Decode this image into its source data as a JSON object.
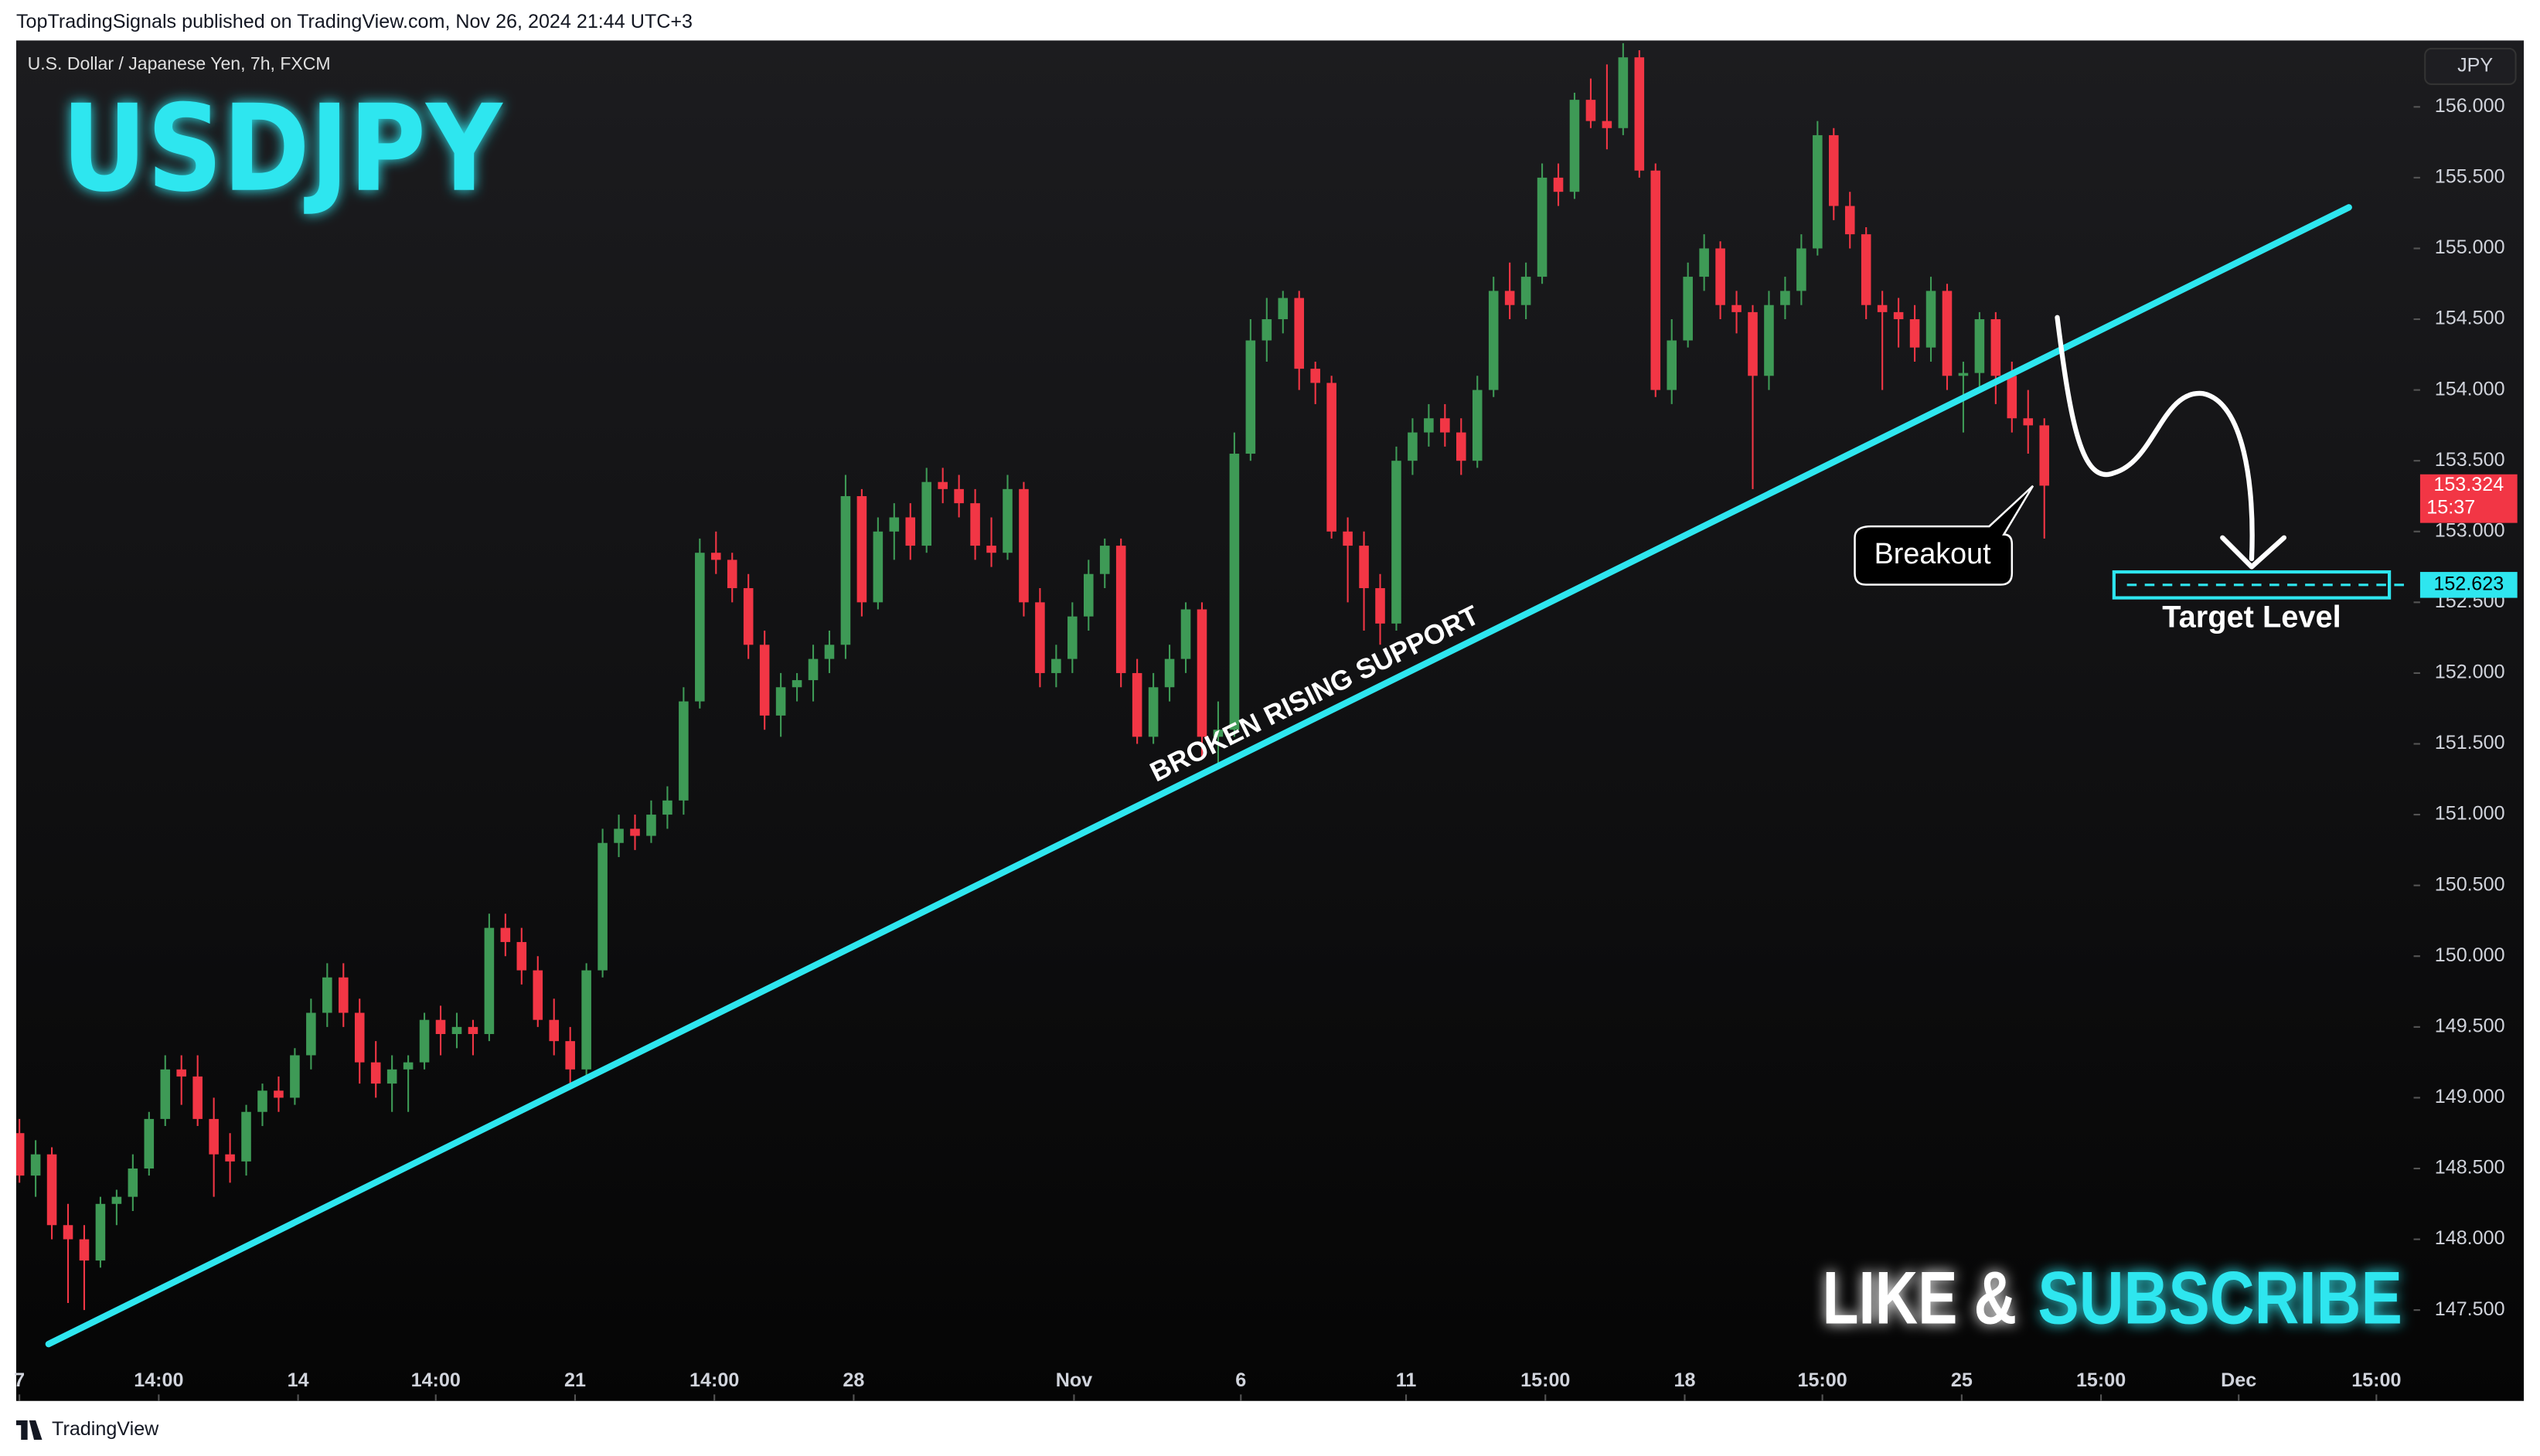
{
  "header": "TopTradingSignals published on TradingView.com, Nov 26, 2024 21:44 UTC+3",
  "footer": "TradingView",
  "chart_data": {
    "type": "candlestick",
    "subtitle": "U.S. Dollar / Japanese Yen, 7h, FXCM",
    "currency": "JPY",
    "title": "USDJPY",
    "up_color": "#3e9a56",
    "down_color": "#f23645",
    "line_color": "#2ee6ef",
    "grid": false,
    "open": [
      148.75,
      148.45,
      148.6,
      148.1,
      148.0,
      147.85,
      148.25,
      148.3,
      148.5,
      148.85,
      149.2,
      149.15,
      148.85,
      148.6,
      148.55,
      148.9,
      149.05,
      149.0,
      149.3,
      149.6,
      149.85,
      149.6,
      149.25,
      149.1,
      149.2,
      149.25,
      149.55,
      149.45,
      149.5,
      149.45,
      150.2,
      150.1,
      149.9,
      149.55,
      149.4,
      149.2,
      149.9,
      150.8,
      150.9,
      150.85,
      151.0,
      151.1,
      151.8,
      152.85,
      152.8,
      152.6,
      152.2,
      151.7,
      151.9,
      151.95,
      152.1,
      152.2,
      153.25,
      152.5,
      153.0,
      153.1,
      152.9,
      153.35,
      153.3,
      153.2,
      152.9,
      152.85,
      153.3,
      152.5,
      152.0,
      152.1,
      152.4,
      152.7,
      152.9,
      152.0,
      151.55,
      151.9,
      152.1,
      152.45,
      151.55,
      151.6,
      153.55,
      154.35,
      154.5,
      154.65,
      154.15,
      154.05,
      153.0,
      152.9,
      152.6,
      152.35,
      153.5,
      153.7,
      153.8,
      153.7,
      153.5,
      154.0,
      154.7,
      154.6,
      154.8,
      155.5,
      155.4,
      156.05,
      155.9,
      155.85,
      156.35,
      155.55,
      154.0,
      154.35,
      154.8,
      155.0,
      154.6,
      154.55,
      154.1,
      154.6,
      154.7,
      155.0,
      155.8,
      155.3,
      155.1,
      154.6,
      154.55,
      154.5,
      154.3,
      154.7,
      154.1,
      154.12,
      154.5,
      154.1,
      153.8,
      153.75
    ],
    "high": [
      148.85,
      148.7,
      148.65,
      148.25,
      148.1,
      148.3,
      148.35,
      148.6,
      148.9,
      149.3,
      149.3,
      149.3,
      149.0,
      148.75,
      148.95,
      149.1,
      149.15,
      149.35,
      149.7,
      149.95,
      149.95,
      149.7,
      149.4,
      149.3,
      149.3,
      149.6,
      149.65,
      149.6,
      149.55,
      150.3,
      150.3,
      150.2,
      150.0,
      149.7,
      149.5,
      149.95,
      150.9,
      151.0,
      151.0,
      151.1,
      151.2,
      151.9,
      152.95,
      153.0,
      152.85,
      152.7,
      152.3,
      152.0,
      152.0,
      152.2,
      152.3,
      153.4,
      153.3,
      153.1,
      153.2,
      153.2,
      153.45,
      153.45,
      153.4,
      153.3,
      153.1,
      153.4,
      153.35,
      152.6,
      152.2,
      152.5,
      152.8,
      152.95,
      152.95,
      152.1,
      152.0,
      152.2,
      152.5,
      152.5,
      151.8,
      153.7,
      154.5,
      154.65,
      154.7,
      154.7,
      154.2,
      154.1,
      153.1,
      153.0,
      152.7,
      153.6,
      153.8,
      153.9,
      153.9,
      153.8,
      154.1,
      154.8,
      154.9,
      154.9,
      155.6,
      155.6,
      156.1,
      156.2,
      156.3,
      156.45,
      156.4,
      155.6,
      154.5,
      154.9,
      155.1,
      155.05,
      154.7,
      154.6,
      154.7,
      154.8,
      155.1,
      155.9,
      155.85,
      155.4,
      155.15,
      154.7,
      154.65,
      154.6,
      154.8,
      154.75,
      154.2,
      154.55,
      154.55,
      154.2,
      154.0,
      153.8
    ],
    "low": [
      148.4,
      148.3,
      148.0,
      147.55,
      147.5,
      147.8,
      148.1,
      148.2,
      148.45,
      148.8,
      148.95,
      148.8,
      148.3,
      148.4,
      148.45,
      148.8,
      148.9,
      148.95,
      149.2,
      149.5,
      149.5,
      149.1,
      149.0,
      148.9,
      148.9,
      149.2,
      149.3,
      149.35,
      149.3,
      149.4,
      150.0,
      149.8,
      149.5,
      149.3,
      149.1,
      149.15,
      149.85,
      150.7,
      150.75,
      150.8,
      150.9,
      151.0,
      151.75,
      152.7,
      152.5,
      152.1,
      151.6,
      151.55,
      151.8,
      151.8,
      152.0,
      152.1,
      152.4,
      152.45,
      152.8,
      152.8,
      152.85,
      153.2,
      153.1,
      152.8,
      152.75,
      152.8,
      152.4,
      151.9,
      151.9,
      152.0,
      152.3,
      152.6,
      151.9,
      151.5,
      151.5,
      151.8,
      152.0,
      151.4,
      151.35,
      151.55,
      153.5,
      154.2,
      154.4,
      154.0,
      153.9,
      152.95,
      152.5,
      152.3,
      152.2,
      152.3,
      153.4,
      153.6,
      153.6,
      153.4,
      153.45,
      153.95,
      154.5,
      154.5,
      154.75,
      155.3,
      155.35,
      155.85,
      155.7,
      155.8,
      155.5,
      153.95,
      153.9,
      154.3,
      154.7,
      154.5,
      154.4,
      153.3,
      154.0,
      154.5,
      154.6,
      154.95,
      155.2,
      155.0,
      154.5,
      154.0,
      154.3,
      154.2,
      154.2,
      154.0,
      153.7,
      154.0,
      153.9,
      153.7,
      153.55,
      152.95
    ],
    "close": [
      148.45,
      148.6,
      148.1,
      148.0,
      147.85,
      148.25,
      148.3,
      148.5,
      148.85,
      149.2,
      149.15,
      148.85,
      148.6,
      148.55,
      148.9,
      149.05,
      149.0,
      149.3,
      149.6,
      149.85,
      149.6,
      149.25,
      149.1,
      149.2,
      149.25,
      149.55,
      149.45,
      149.5,
      149.45,
      150.2,
      150.1,
      149.9,
      149.55,
      149.4,
      149.2,
      149.9,
      150.8,
      150.9,
      150.85,
      151.0,
      151.1,
      151.8,
      152.85,
      152.8,
      152.6,
      152.2,
      151.7,
      151.9,
      151.95,
      152.1,
      152.2,
      153.25,
      152.5,
      153.0,
      153.1,
      152.9,
      153.35,
      153.3,
      153.2,
      152.9,
      152.85,
      153.3,
      152.5,
      152.0,
      152.1,
      152.4,
      152.7,
      152.9,
      152.0,
      151.55,
      151.9,
      152.1,
      152.45,
      151.55,
      151.6,
      153.55,
      154.35,
      154.5,
      154.65,
      154.15,
      154.05,
      153.0,
      152.9,
      152.6,
      152.35,
      153.5,
      153.7,
      153.8,
      153.7,
      153.5,
      154.0,
      154.7,
      154.6,
      154.8,
      155.5,
      155.4,
      156.05,
      155.9,
      155.85,
      156.35,
      155.55,
      154.0,
      154.35,
      154.8,
      155.0,
      154.6,
      154.55,
      154.1,
      154.6,
      154.7,
      155.0,
      155.8,
      155.3,
      155.1,
      154.6,
      154.55,
      154.5,
      154.3,
      154.7,
      154.1,
      154.12,
      154.5,
      154.1,
      153.8,
      153.75,
      153.324
    ],
    "xlim": [
      -0.2,
      147.8
    ],
    "xticks": [
      {
        "value": 0,
        "label": "7"
      },
      {
        "value": 8.6,
        "label": "14:00"
      },
      {
        "value": 17.2,
        "label": "14"
      },
      {
        "value": 25.7,
        "label": "14:00"
      },
      {
        "value": 34.3,
        "label": "21"
      },
      {
        "value": 42.9,
        "label": "14:00"
      },
      {
        "value": 51.5,
        "label": "28"
      },
      {
        "value": 65.1,
        "label": "Nov"
      },
      {
        "value": 75.4,
        "label": "6"
      },
      {
        "value": 85.6,
        "label": "11"
      },
      {
        "value": 94.2,
        "label": "15:00"
      },
      {
        "value": 102.8,
        "label": "18"
      },
      {
        "value": 111.3,
        "label": "15:00"
      },
      {
        "value": 119.9,
        "label": "25"
      },
      {
        "value": 128.5,
        "label": "15:00"
      },
      {
        "value": 137,
        "label": "Dec"
      },
      {
        "value": 145.5,
        "label": "15:00"
      }
    ],
    "ylim": [
      146.858,
      156.469
    ],
    "yticks": [
      {
        "value": 147.5,
        "label": "147.500"
      },
      {
        "value": 148,
        "label": "148.000"
      },
      {
        "value": 148.5,
        "label": "148.500"
      },
      {
        "value": 149,
        "label": "149.000"
      },
      {
        "value": 149.5,
        "label": "149.500"
      },
      {
        "value": 150,
        "label": "150.000"
      },
      {
        "value": 150.5,
        "label": "150.500"
      },
      {
        "value": 151,
        "label": "151.000"
      },
      {
        "value": 151.5,
        "label": "151.500"
      },
      {
        "value": 152,
        "label": "152.000"
      },
      {
        "value": 152.5,
        "label": "152.500"
      },
      {
        "value": 153,
        "label": "153.000"
      },
      {
        "value": 153.5,
        "label": "153.500"
      },
      {
        "value": 154,
        "label": "154.000"
      },
      {
        "value": 154.5,
        "label": "154.500"
      },
      {
        "value": 155,
        "label": "155.000"
      },
      {
        "value": 155.5,
        "label": "155.500"
      },
      {
        "value": 156,
        "label": "156.000"
      }
    ],
    "last_price": 153.324,
    "countdown": "15:37",
    "trendline": {
      "label": "BROKEN RISING SUPPORT",
      "x": [
        1.8,
        143.8
      ],
      "y": [
        147.26,
        155.29
      ]
    },
    "breakout_label": "Breakout",
    "target": {
      "label": "Target Level",
      "value": 152.623,
      "x": [
        129.3,
        146.3
      ]
    },
    "cta": [
      "LIKE &",
      "SUBSCRIBE"
    ]
  }
}
